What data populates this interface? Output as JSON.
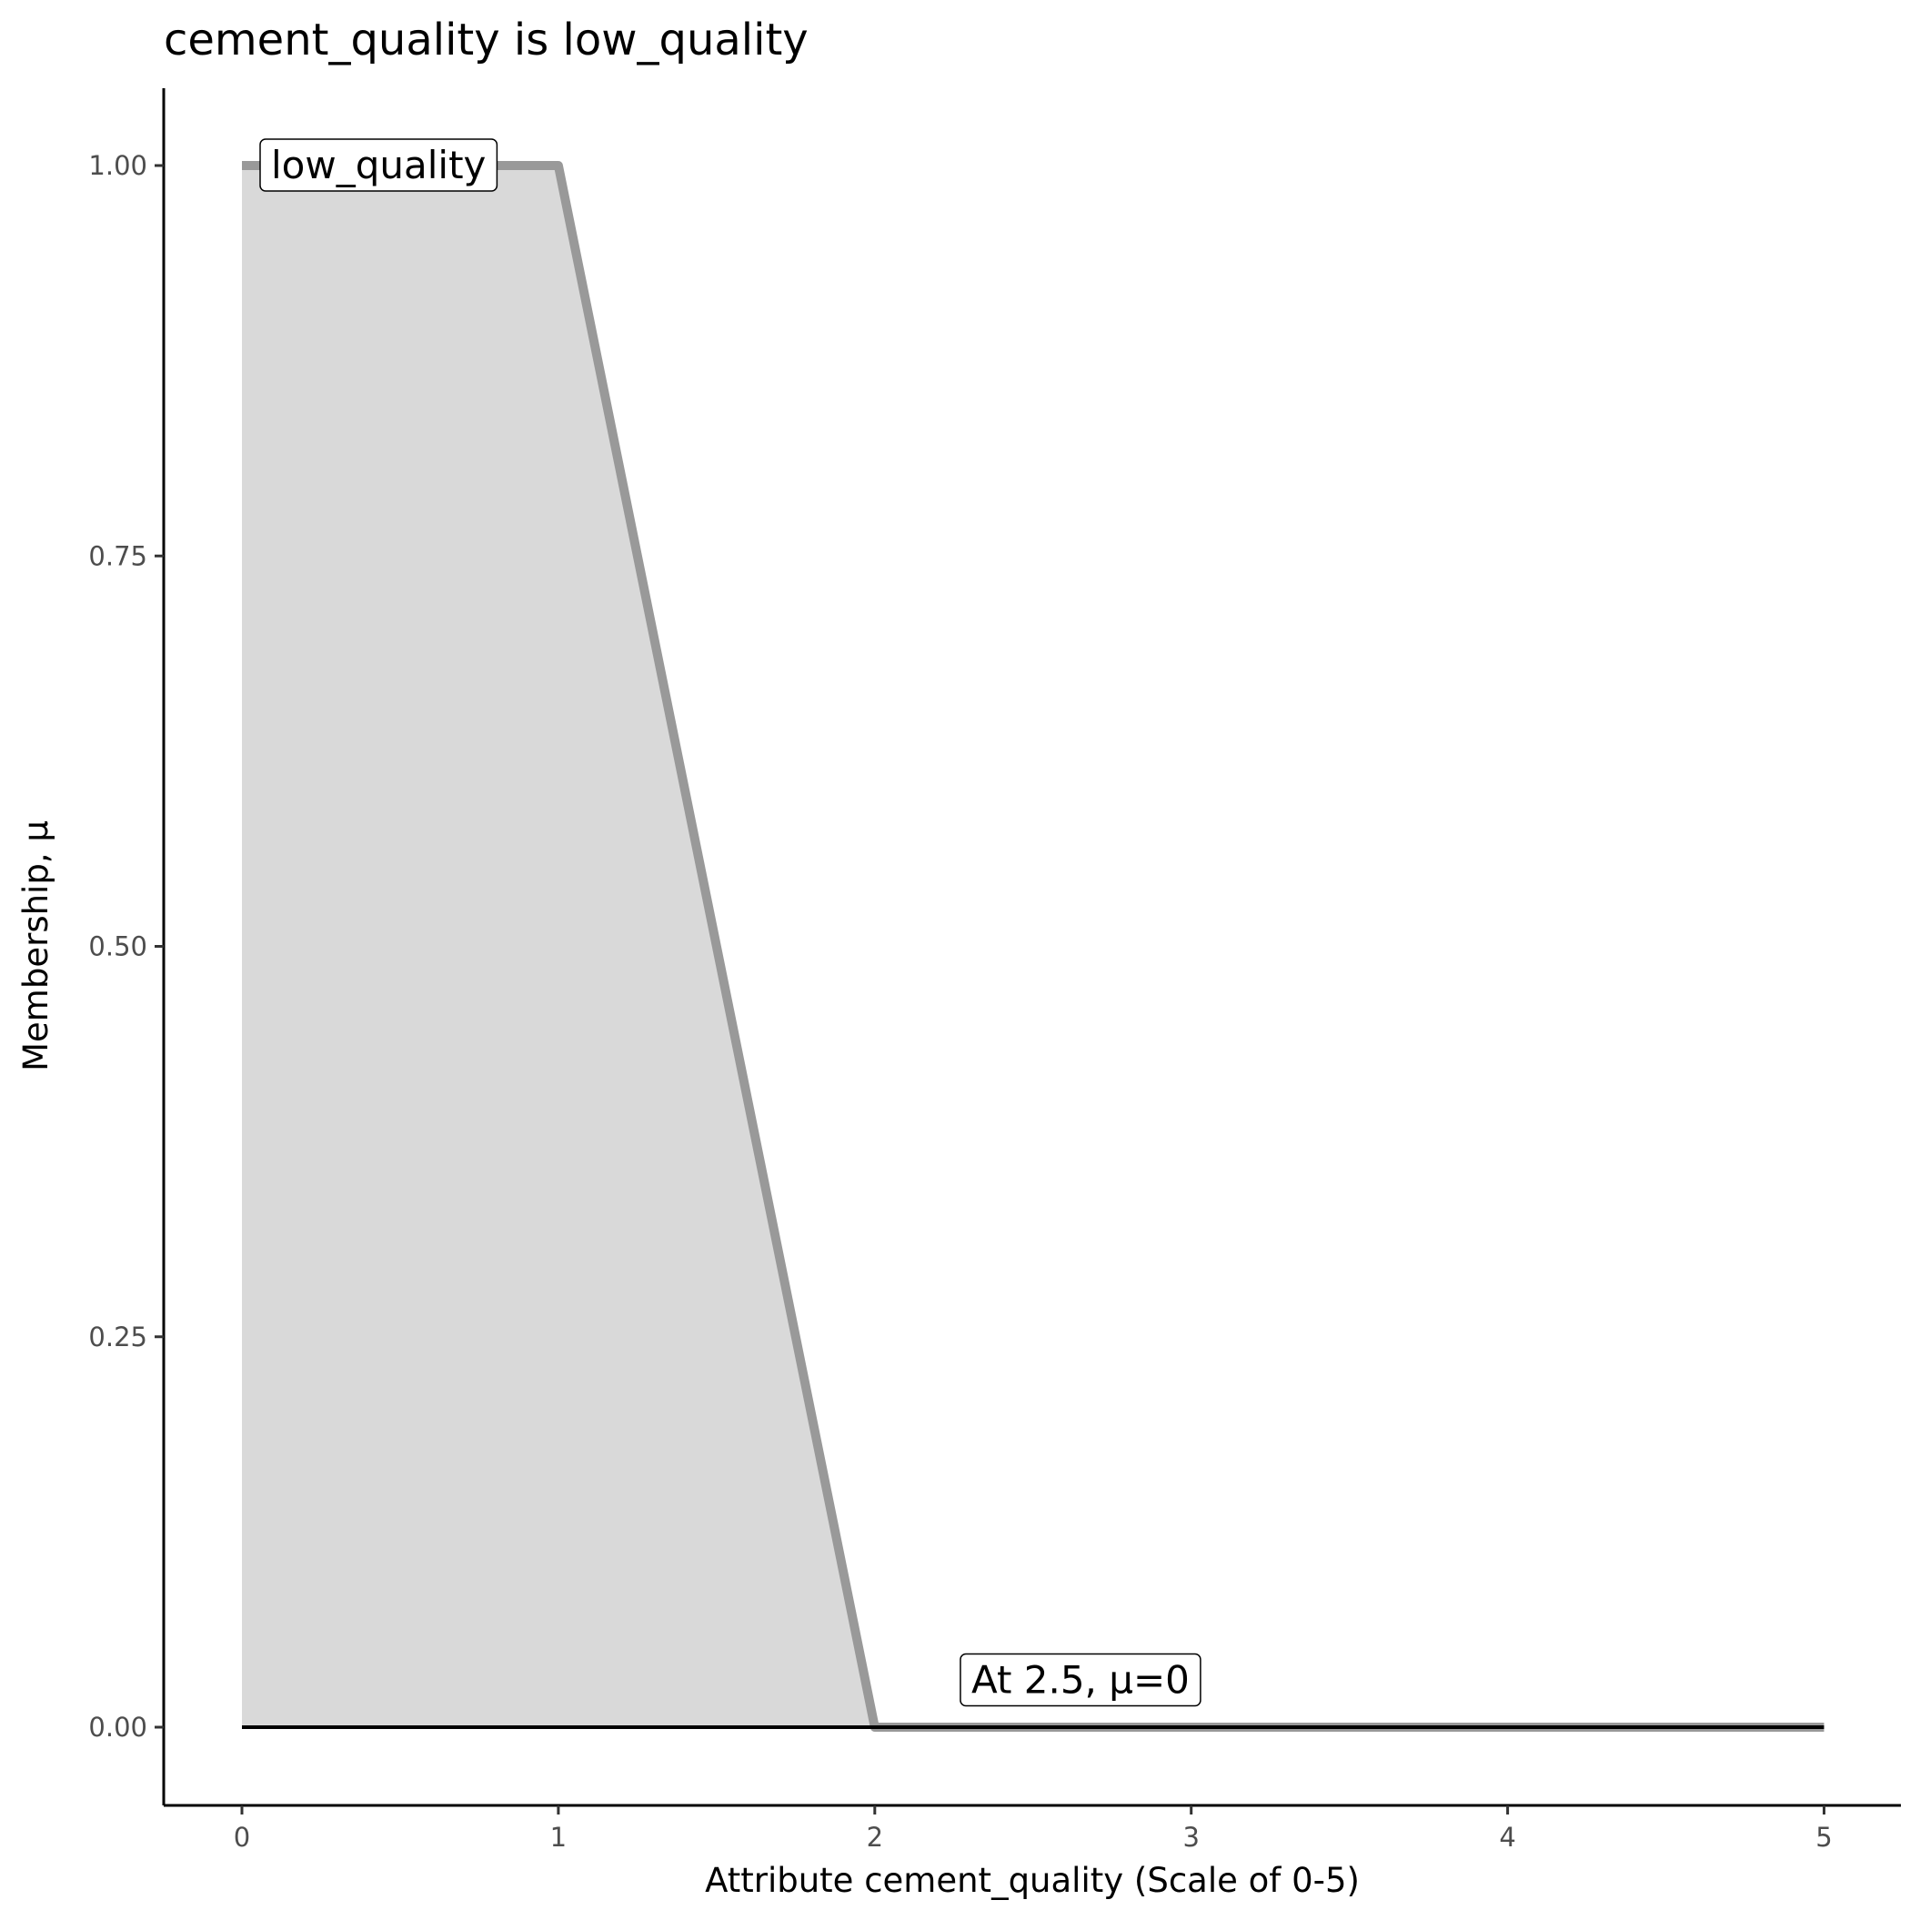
{
  "chart_data": {
    "type": "area",
    "title": "cement_quality is low_quality",
    "xlabel": "Attribute cement_quality (Scale of 0-5)",
    "ylabel": "Membership, μ",
    "xlim": [
      -0.25,
      5.25
    ],
    "ylim": [
      -0.05,
      1.05
    ],
    "x_ticks": [
      "0",
      "1",
      "2",
      "3",
      "4",
      "5"
    ],
    "y_ticks": [
      "0.00",
      "0.25",
      "0.50",
      "0.75",
      "1.00"
    ],
    "grid": false,
    "membership": {
      "x": [
        0,
        1,
        2,
        5
      ],
      "y": [
        1,
        1,
        0,
        0
      ]
    },
    "cut_line": {
      "x": [
        0,
        5
      ],
      "y": 0
    },
    "labels": [
      {
        "text": "low_quality",
        "x": 0,
        "y": 1
      },
      {
        "text": "At 2.5, μ=0",
        "x": 2.65,
        "y": 0.03
      }
    ],
    "colors": {
      "fill": "#d9d9d9",
      "line": "#999999",
      "cut": "#000000"
    }
  }
}
